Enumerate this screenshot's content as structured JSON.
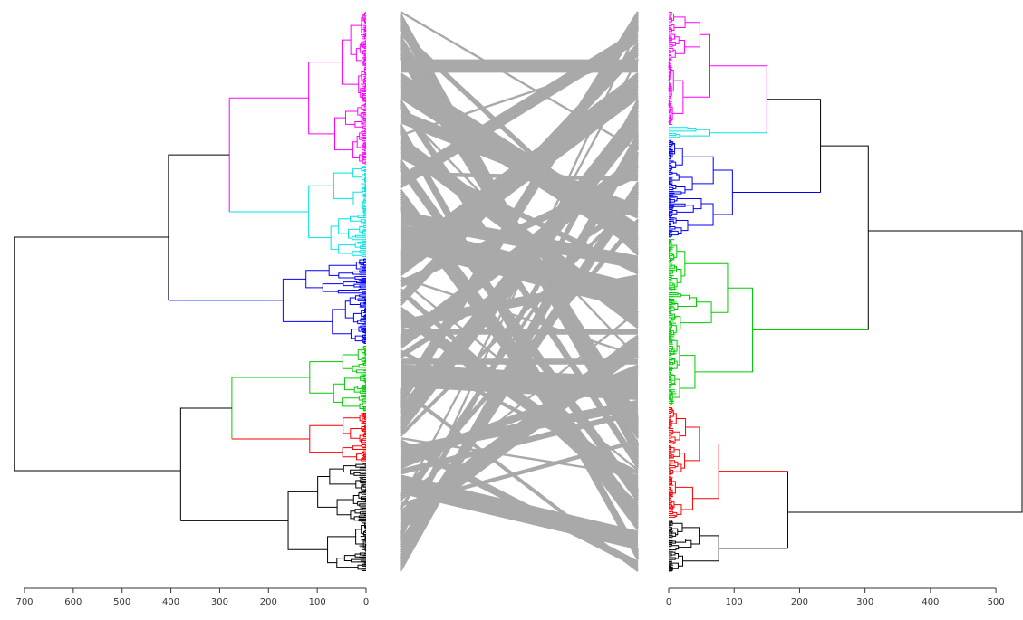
{
  "chart_data": [
    {
      "type": "dendrogram",
      "orientation": "root-left",
      "xlim": [
        700,
        0
      ],
      "ticks": [
        0,
        100,
        200,
        300,
        400,
        500,
        600,
        700
      ],
      "tick_labels": [
        "0",
        "100",
        "200",
        "300",
        "400",
        "500",
        "600",
        "700"
      ],
      "root_height": 720,
      "clusters": [
        {
          "color": "#ff00ff",
          "leaf_range": [
            0,
            0.275
          ],
          "height": 280
        },
        {
          "color": "#00e5e5",
          "leaf_range": [
            0.275,
            0.44
          ],
          "height": 280
        },
        {
          "color": "#0000ff",
          "leaf_range": [
            0.44,
            0.595
          ],
          "height": 405
        },
        {
          "color": "#00cc00",
          "leaf_range": [
            0.595,
            0.715
          ],
          "height": 275
        },
        {
          "color": "#ff0000",
          "leaf_range": [
            0.715,
            0.805
          ],
          "height": 275
        },
        {
          "color": "#000000",
          "leaf_range": [
            0.805,
            1.0
          ],
          "height": 380
        }
      ],
      "merges": [
        {
          "height": 720,
          "color": "#000000"
        },
        {
          "height": 405,
          "color": "#000000"
        },
        {
          "height": 380,
          "color": "#000000"
        },
        {
          "height": 280,
          "color": "#ff00ff"
        },
        {
          "height": 275,
          "color": "#00cc00"
        }
      ]
    },
    {
      "type": "dendrogram",
      "orientation": "root-right",
      "xlim": [
        0,
        540
      ],
      "ticks": [
        0,
        100,
        200,
        300,
        400,
        500
      ],
      "tick_labels": [
        "0",
        "100",
        "200",
        "300",
        "400",
        "500"
      ],
      "root_height": 540,
      "clusters": [
        {
          "color": "#ff00ff",
          "leaf_range": [
            0,
            0.205
          ],
          "height": 150
        },
        {
          "color": "#00e5e5",
          "leaf_range": [
            0.205,
            0.228
          ],
          "height": 150
        },
        {
          "color": "#0000ff",
          "leaf_range": [
            0.228,
            0.405
          ],
          "height": 232
        },
        {
          "color": "#00cc00",
          "leaf_range": [
            0.405,
            0.705
          ],
          "height": 305
        },
        {
          "color": "#ff0000",
          "leaf_range": [
            0.705,
            0.905
          ],
          "height": 182
        },
        {
          "color": "#000000",
          "leaf_range": [
            0.905,
            1.0
          ],
          "height": 182
        }
      ],
      "merges": [
        {
          "height": 540,
          "color": "#000000"
        },
        {
          "height": 305,
          "color": "#000000"
        },
        {
          "height": 232,
          "color": "#000000"
        },
        {
          "height": 182,
          "color": "#000000"
        },
        {
          "height": 150,
          "color": "#ff00ff"
        }
      ]
    },
    {
      "type": "tanglegram-connections",
      "color": "#a9a9a9",
      "n_leaves": 300
    }
  ]
}
